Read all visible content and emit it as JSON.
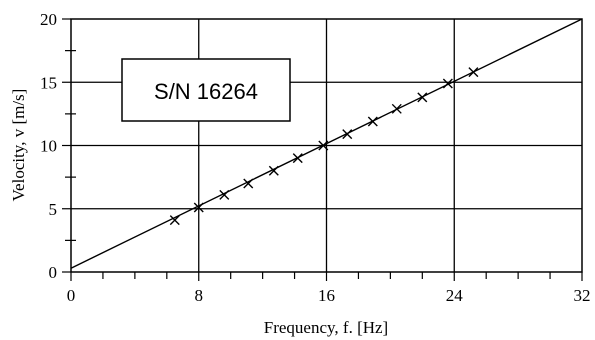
{
  "chart_data": {
    "type": "scatter",
    "xlabel": "Frequency, f. [Hz]",
    "ylabel": "Velocity, v [m/s]",
    "xlim": [
      0,
      32
    ],
    "ylim": [
      0,
      20
    ],
    "xticks": [
      0,
      8,
      16,
      24,
      32
    ],
    "xtick_labels": [
      "0",
      "8",
      "16",
      "24",
      "32"
    ],
    "yticks": [
      0,
      5,
      10,
      15,
      20
    ],
    "ytick_labels": [
      "0",
      "5",
      "10",
      "15",
      "20"
    ],
    "grid": true,
    "annotation": "S/N 16264",
    "series": [
      {
        "marker": "x",
        "x": [
          6.5,
          8.0,
          9.6,
          11.1,
          12.7,
          14.2,
          15.8,
          17.3,
          18.9,
          20.4,
          22.0,
          23.6,
          25.2
        ],
        "y": [
          4.1,
          5.1,
          6.1,
          7.0,
          8.0,
          9.0,
          10.0,
          10.9,
          11.9,
          12.9,
          13.8,
          14.9,
          15.8
        ]
      }
    ],
    "fit_line": {
      "x": [
        0,
        32
      ],
      "y": [
        0.3,
        20
      ]
    }
  }
}
